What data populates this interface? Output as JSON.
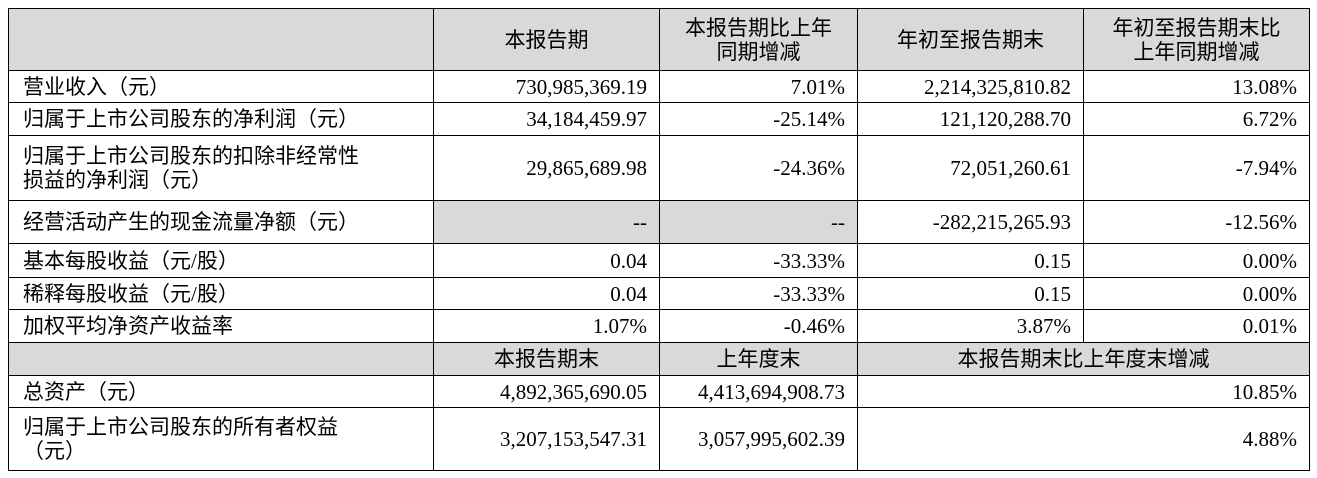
{
  "table": {
    "header": [
      [
        "本报告期"
      ],
      [
        "本报告期比上年",
        "同期增减"
      ],
      [
        "年初至报告期末"
      ],
      [
        "年初至报告期末比",
        "上年同期增减"
      ]
    ],
    "rows": [
      {
        "label": [
          "营业收入（元）"
        ],
        "cells": [
          "730,985,369.19",
          "7.01%",
          "2,214,325,810.82",
          "13.08%"
        ]
      },
      {
        "label": [
          "归属于上市公司股东的净利润（元）"
        ],
        "cells": [
          "34,184,459.97",
          "-25.14%",
          "121,120,288.70",
          "6.72%"
        ]
      },
      {
        "label": [
          "归属于上市公司股东的扣除非经常性",
          "损益的净利润（元）"
        ],
        "cells": [
          "29,865,689.98",
          "-24.36%",
          "72,051,260.61",
          "-7.94%"
        ]
      },
      {
        "label": [
          "经营活动产生的现金流量净额（元）"
        ],
        "cells": [
          "--",
          "--",
          "-282,215,265.93",
          "-12.56%"
        ]
      },
      {
        "label": [
          "基本每股收益（元/股）"
        ],
        "cells": [
          "0.04",
          "-33.33%",
          "0.15",
          "0.00%"
        ]
      },
      {
        "label": [
          "稀释每股收益（元/股）"
        ],
        "cells": [
          "0.04",
          "-33.33%",
          "0.15",
          "0.00%"
        ]
      },
      {
        "label": [
          "加权平均净资产收益率"
        ],
        "cells": [
          "1.07%",
          "-0.46%",
          "3.87%",
          "0.01%"
        ]
      }
    ],
    "subheader": [
      "本报告期末",
      "上年度末",
      "本报告期末比上年度末增减"
    ],
    "rows2": [
      {
        "label": [
          "总资产（元）"
        ],
        "cells": [
          "4,892,365,690.05",
          "4,413,694,908.73",
          "10.85%"
        ]
      },
      {
        "label": [
          "归属于上市公司股东的所有者权益",
          "（元）"
        ],
        "cells": [
          "3,207,153,547.31",
          "3,057,995,602.39",
          "4.88%"
        ]
      }
    ]
  }
}
